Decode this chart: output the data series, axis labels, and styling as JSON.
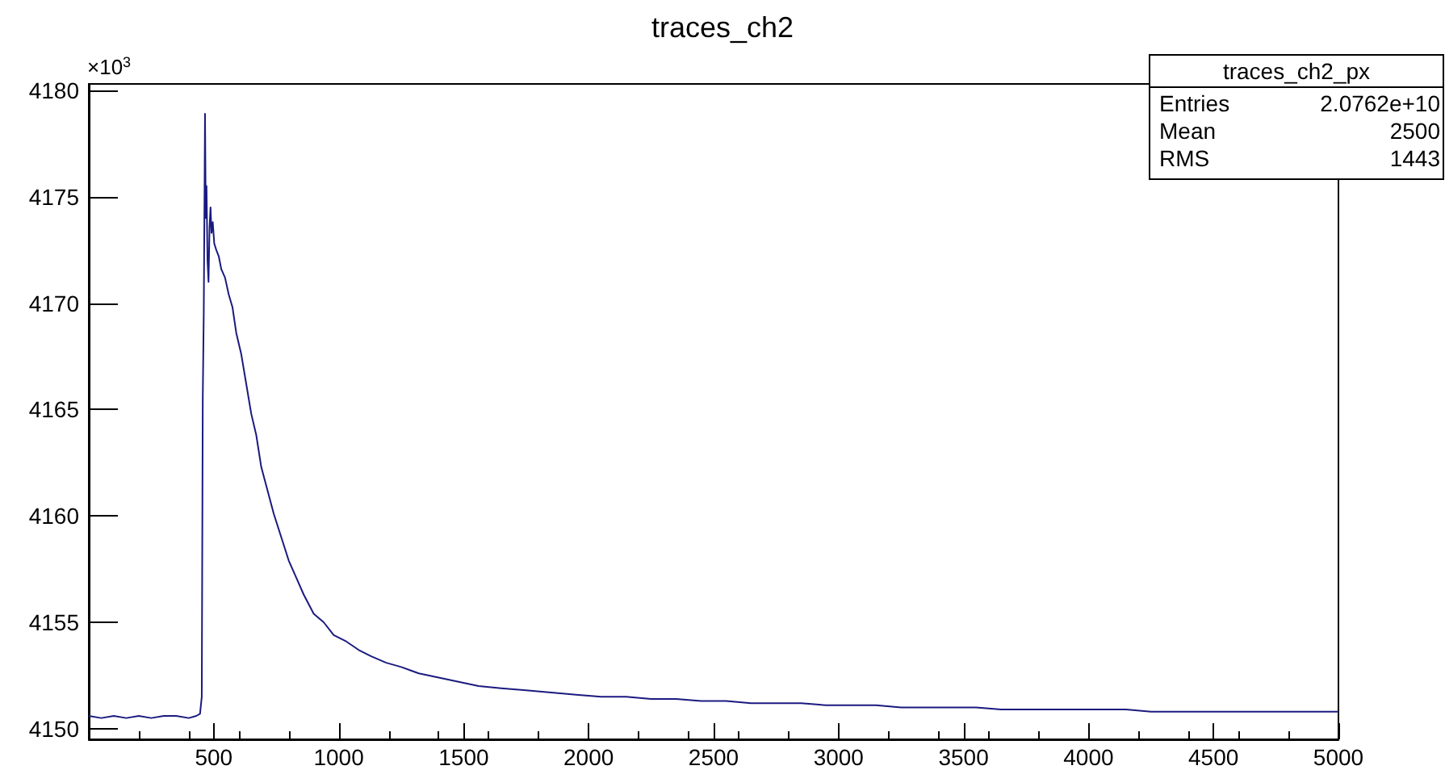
{
  "chart_data": {
    "type": "line",
    "title": "traces_ch2",
    "annotations": [
      "×10$^{3}$",
      "traces_ch2_px",
      "Entries",
      "2.0762e+10",
      "Mean",
      "2500",
      "RMS",
      "1443"
    ],
    "x": [
      0,
      50,
      100,
      150,
      200,
      250,
      300,
      350,
      400,
      430,
      445,
      452,
      456,
      460,
      463,
      465,
      468,
      471,
      475,
      479,
      483,
      487,
      491,
      496,
      502,
      510,
      520,
      530,
      545,
      560,
      575,
      590,
      610,
      630,
      650,
      670,
      690,
      715,
      740,
      770,
      800,
      830,
      860,
      900,
      940,
      980,
      1030,
      1080,
      1130,
      1190,
      1250,
      1320,
      1400,
      1480,
      1560,
      1650,
      1750,
      1850,
      1950,
      2050,
      2150,
      2250,
      2350,
      2450,
      2550,
      2650,
      2750,
      2850,
      2950,
      3050,
      3150,
      3250,
      3350,
      3450,
      3550,
      3650,
      3750,
      3850,
      3950,
      4050,
      4150,
      4250,
      4350,
      4450,
      4550,
      4650,
      4750,
      4850,
      4950,
      5000
    ],
    "series": [
      {
        "color": "#1a1a80",
        "values": [
          4150.6,
          4150.5,
          4150.6,
          4150.5,
          4150.6,
          4150.5,
          4150.6,
          4150.6,
          4150.5,
          4150.6,
          4150.7,
          4151.5,
          4165.5,
          4169.6,
          4175,
          4178.9,
          4174,
          4175.5,
          4172,
          4171,
          4173.5,
          4174.5,
          4173.3,
          4173.8,
          4172.8,
          4172.5,
          4172.2,
          4171.6,
          4171.2,
          4170.4,
          4169.8,
          4168.6,
          4167.6,
          4166.2,
          4164.8,
          4163.8,
          4162.3,
          4161.2,
          4160.1,
          4159,
          4157.9,
          4157.1,
          4156.3,
          4155.4,
          4155,
          4154.4,
          4154.1,
          4153.7,
          4153.4,
          4153.1,
          4152.9,
          4152.6,
          4152.4,
          4152.2,
          4152.0,
          4151.9,
          4151.8,
          4151.7,
          4151.6,
          4151.5,
          4151.5,
          4151.4,
          4151.4,
          4151.3,
          4151.3,
          4151.2,
          4151.2,
          4151.2,
          4151.1,
          4151.1,
          4151.1,
          4151.0,
          4151.0,
          4151.0,
          4151.0,
          4150.9,
          4150.9,
          4150.9,
          4150.9,
          4150.9,
          4150.9,
          4150.8,
          4150.8,
          4150.8,
          4150.8,
          4150.8,
          4150.8,
          4150.8,
          4150.8,
          4150.8
        ]
      }
    ],
    "xlim": [
      0,
      5000
    ],
    "xticks": [
      500,
      1000,
      1500,
      2000,
      2500,
      3000,
      3500,
      4000,
      4500,
      5000
    ],
    "ylim": [
      4149.5,
      4180.3
    ],
    "yticks": [
      4150,
      4155,
      4160,
      4165,
      4170,
      4175,
      4180
    ],
    "grid": false,
    "line_style": "solid"
  }
}
